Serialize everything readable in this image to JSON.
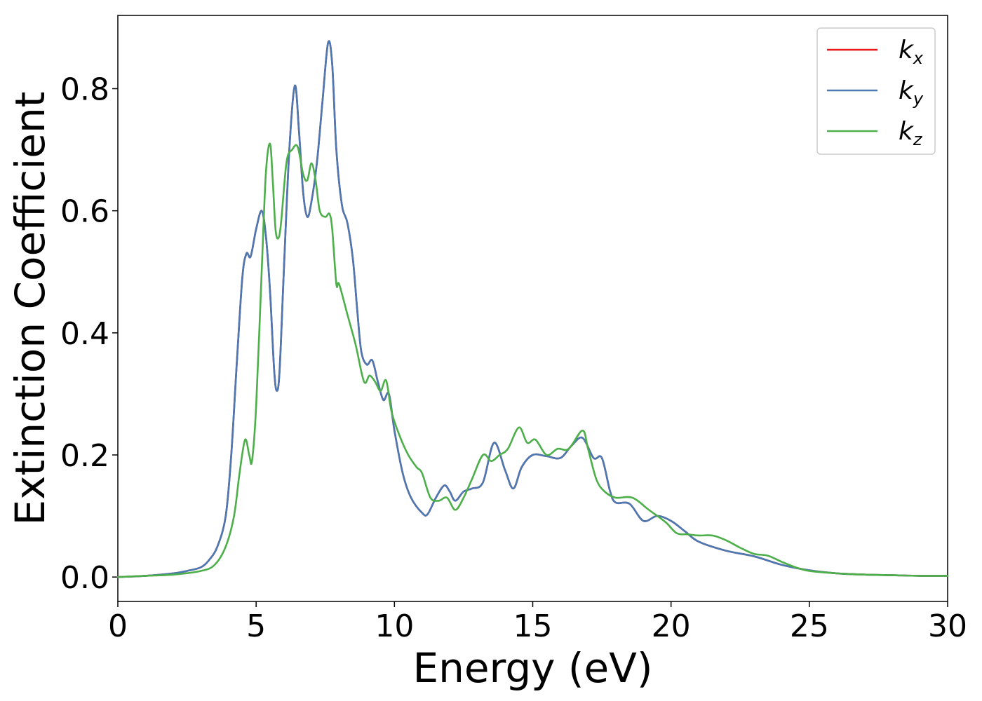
{
  "chart_data": {
    "type": "line",
    "xlabel": "Energy (eV)",
    "ylabel": "Extinction Coefficient",
    "xlim": [
      0,
      30
    ],
    "ylim": [
      -0.04,
      0.92
    ],
    "xticks": [
      "0",
      "5",
      "10",
      "15",
      "20",
      "25",
      "30"
    ],
    "yticks": [
      "0.0",
      "0.2",
      "0.4",
      "0.6",
      "0.8"
    ],
    "grid": false,
    "legend_position": "top-right",
    "series": [
      {
        "name": "k_x",
        "label_base": "k",
        "label_sub": "x",
        "color": "#e41a1c",
        "x": [
          0,
          1,
          2,
          2.5,
          3,
          3.3,
          3.6,
          3.9,
          4.1,
          4.3,
          4.5,
          4.65,
          4.8,
          5.0,
          5.2,
          5.35,
          5.5,
          5.65,
          5.75,
          5.85,
          6.0,
          6.2,
          6.4,
          6.55,
          6.7,
          6.85,
          7.0,
          7.2,
          7.4,
          7.6,
          7.75,
          7.9,
          8.1,
          8.3,
          8.5,
          8.65,
          8.8,
          9.0,
          9.2,
          9.4,
          9.6,
          9.8,
          10.0,
          10.3,
          10.6,
          11.0,
          11.2,
          11.5,
          11.8,
          12.0,
          12.2,
          12.5,
          12.8,
          13.2,
          13.6,
          14.0,
          14.3,
          14.6,
          15.0,
          15.5,
          16.0,
          16.4,
          16.8,
          17.2,
          17.5,
          17.8,
          18.0,
          18.5,
          19.0,
          19.5,
          20.0,
          20.5,
          21.0,
          22.0,
          23.0,
          24.0,
          25.0,
          26.0,
          27.0,
          28.0,
          29.0,
          30.0
        ],
        "y": [
          0.0,
          0.002,
          0.006,
          0.01,
          0.016,
          0.028,
          0.05,
          0.1,
          0.2,
          0.35,
          0.49,
          0.53,
          0.525,
          0.57,
          0.6,
          0.56,
          0.47,
          0.34,
          0.305,
          0.34,
          0.5,
          0.7,
          0.805,
          0.73,
          0.63,
          0.59,
          0.615,
          0.68,
          0.78,
          0.875,
          0.84,
          0.7,
          0.61,
          0.58,
          0.52,
          0.44,
          0.37,
          0.348,
          0.355,
          0.32,
          0.29,
          0.3,
          0.24,
          0.17,
          0.13,
          0.105,
          0.103,
          0.13,
          0.15,
          0.14,
          0.125,
          0.14,
          0.145,
          0.155,
          0.22,
          0.175,
          0.145,
          0.18,
          0.2,
          0.198,
          0.195,
          0.215,
          0.228,
          0.195,
          0.195,
          0.14,
          0.122,
          0.12,
          0.092,
          0.1,
          0.092,
          0.075,
          0.058,
          0.043,
          0.034,
          0.02,
          0.011,
          0.006,
          0.004,
          0.003,
          0.002,
          0.002
        ]
      },
      {
        "name": "k_y",
        "label_base": "k",
        "label_sub": "y",
        "color": "#4a79b4",
        "x": [
          0,
          1,
          2,
          2.5,
          3,
          3.3,
          3.6,
          3.9,
          4.1,
          4.3,
          4.5,
          4.65,
          4.8,
          5.0,
          5.2,
          5.35,
          5.5,
          5.65,
          5.75,
          5.85,
          6.0,
          6.2,
          6.4,
          6.55,
          6.7,
          6.85,
          7.0,
          7.2,
          7.4,
          7.6,
          7.75,
          7.9,
          8.1,
          8.3,
          8.5,
          8.65,
          8.8,
          9.0,
          9.2,
          9.4,
          9.6,
          9.8,
          10.0,
          10.3,
          10.6,
          11.0,
          11.2,
          11.5,
          11.8,
          12.0,
          12.2,
          12.5,
          12.8,
          13.2,
          13.6,
          14.0,
          14.3,
          14.6,
          15.0,
          15.5,
          16.0,
          16.4,
          16.8,
          17.2,
          17.5,
          17.8,
          18.0,
          18.5,
          19.0,
          19.5,
          20.0,
          20.5,
          21.0,
          22.0,
          23.0,
          24.0,
          25.0,
          26.0,
          27.0,
          28.0,
          29.0,
          30.0
        ],
        "y": [
          0.0,
          0.002,
          0.006,
          0.01,
          0.016,
          0.028,
          0.05,
          0.1,
          0.2,
          0.35,
          0.49,
          0.53,
          0.525,
          0.57,
          0.6,
          0.56,
          0.47,
          0.34,
          0.305,
          0.34,
          0.5,
          0.7,
          0.805,
          0.73,
          0.63,
          0.59,
          0.615,
          0.68,
          0.78,
          0.875,
          0.84,
          0.7,
          0.61,
          0.58,
          0.52,
          0.44,
          0.37,
          0.348,
          0.355,
          0.32,
          0.29,
          0.3,
          0.24,
          0.17,
          0.13,
          0.105,
          0.103,
          0.13,
          0.15,
          0.14,
          0.125,
          0.14,
          0.145,
          0.155,
          0.22,
          0.175,
          0.145,
          0.18,
          0.2,
          0.198,
          0.195,
          0.215,
          0.228,
          0.195,
          0.195,
          0.14,
          0.122,
          0.12,
          0.092,
          0.1,
          0.092,
          0.075,
          0.058,
          0.043,
          0.034,
          0.02,
          0.011,
          0.006,
          0.004,
          0.003,
          0.002,
          0.002
        ]
      },
      {
        "name": "k_z",
        "label_base": "k",
        "label_sub": "z",
        "color": "#4daf4a",
        "x": [
          0,
          1,
          2,
          3,
          3.5,
          3.9,
          4.2,
          4.4,
          4.6,
          4.75,
          4.85,
          5.0,
          5.2,
          5.35,
          5.5,
          5.6,
          5.7,
          5.8,
          5.9,
          6.1,
          6.3,
          6.5,
          6.7,
          6.85,
          7.0,
          7.15,
          7.3,
          7.5,
          7.65,
          7.75,
          7.9,
          8.0,
          8.3,
          8.6,
          8.9,
          9.1,
          9.3,
          9.5,
          9.7,
          9.9,
          10.2,
          10.5,
          10.8,
          11.0,
          11.3,
          11.6,
          11.9,
          12.2,
          12.5,
          12.8,
          13.2,
          13.5,
          13.8,
          14.1,
          14.5,
          14.8,
          15.1,
          15.5,
          15.9,
          16.3,
          16.8,
          17.0,
          17.3,
          17.6,
          18.0,
          18.6,
          19.2,
          19.8,
          20.2,
          20.6,
          21.0,
          21.5,
          22.0,
          22.5,
          23.0,
          23.5,
          24.0,
          24.5,
          25.0,
          26.0,
          27.0,
          28.0,
          29.0,
          30.0
        ],
        "y": [
          0.0,
          0.002,
          0.004,
          0.01,
          0.02,
          0.05,
          0.1,
          0.17,
          0.225,
          0.2,
          0.19,
          0.28,
          0.5,
          0.66,
          0.71,
          0.65,
          0.57,
          0.555,
          0.58,
          0.68,
          0.7,
          0.705,
          0.66,
          0.65,
          0.678,
          0.65,
          0.6,
          0.59,
          0.595,
          0.57,
          0.48,
          0.48,
          0.43,
          0.38,
          0.32,
          0.33,
          0.32,
          0.305,
          0.322,
          0.27,
          0.23,
          0.2,
          0.18,
          0.17,
          0.13,
          0.125,
          0.13,
          0.11,
          0.13,
          0.16,
          0.2,
          0.19,
          0.2,
          0.21,
          0.245,
          0.22,
          0.225,
          0.2,
          0.21,
          0.21,
          0.24,
          0.21,
          0.16,
          0.14,
          0.13,
          0.13,
          0.11,
          0.09,
          0.072,
          0.07,
          0.068,
          0.068,
          0.06,
          0.048,
          0.038,
          0.035,
          0.025,
          0.016,
          0.01,
          0.006,
          0.004,
          0.003,
          0.002,
          0.002
        ]
      }
    ]
  }
}
